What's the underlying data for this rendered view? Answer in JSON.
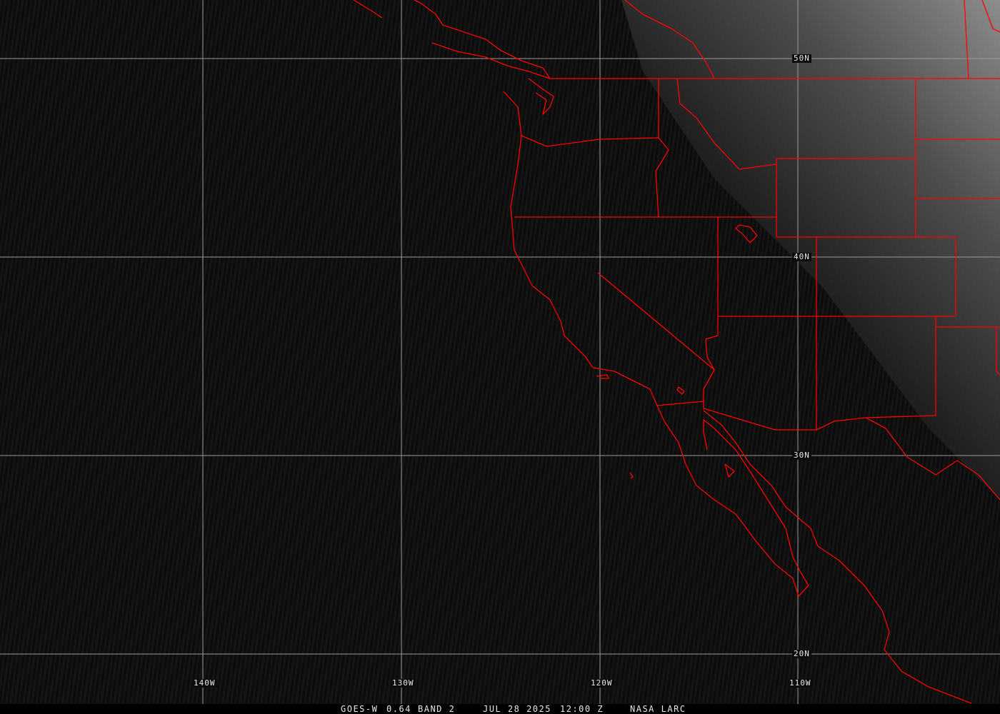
{
  "image": {
    "satellite": "GOES-W",
    "channel": "0.64",
    "band": "BAND 2",
    "date": "JUL 28 2025",
    "time": "12:00 Z",
    "credit": "NASA LARC"
  },
  "grid": {
    "latitudes": [
      "50N",
      "40N",
      "30N",
      "20N"
    ],
    "longitudes": [
      "140W",
      "130W",
      "120W",
      "110W"
    ],
    "grid_color": "#9a9a9a"
  },
  "boundary_color": "#ff0000"
}
